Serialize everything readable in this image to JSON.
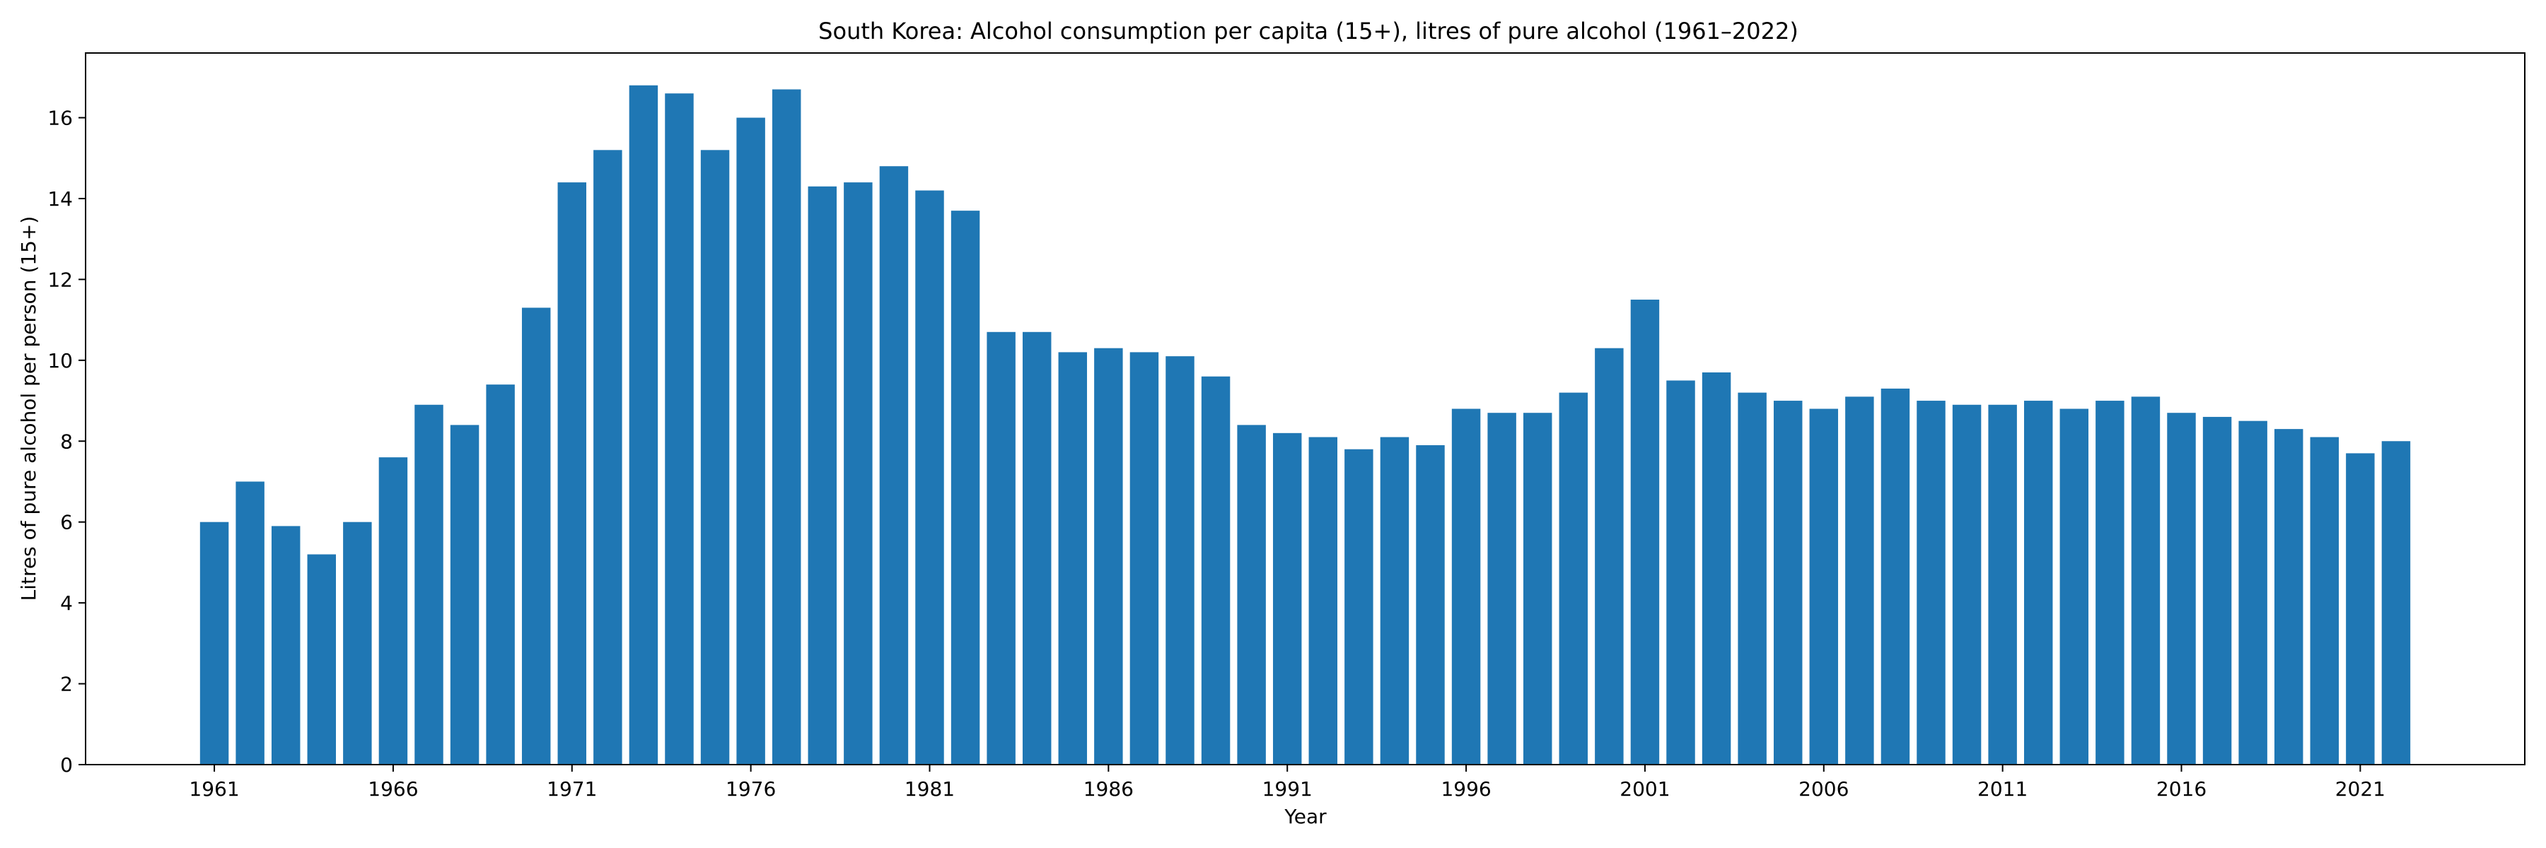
{
  "chart_data": {
    "type": "bar",
    "title": "South Korea: Alcohol consumption per capita (15+), litres of pure alcohol (1961–2022)",
    "xlabel": "Year",
    "ylabel": "Litres of pure alcohol per person (15+)",
    "ylim": [
      0,
      17.6
    ],
    "xlim": [
      1957.4,
      2025.6
    ],
    "yticks": [
      0,
      2,
      4,
      6,
      8,
      10,
      12,
      14,
      16
    ],
    "xticks": [
      1961,
      1966,
      1971,
      1976,
      1981,
      1986,
      1991,
      1996,
      2001,
      2006,
      2011,
      2016,
      2021
    ],
    "grid": false,
    "bar_color": "#1f77b4",
    "categories": [
      1961,
      1962,
      1963,
      1964,
      1965,
      1966,
      1967,
      1968,
      1969,
      1970,
      1971,
      1972,
      1973,
      1974,
      1975,
      1976,
      1977,
      1978,
      1979,
      1980,
      1981,
      1982,
      1983,
      1984,
      1985,
      1986,
      1987,
      1988,
      1989,
      1990,
      1991,
      1992,
      1993,
      1994,
      1995,
      1996,
      1997,
      1998,
      1999,
      2000,
      2001,
      2002,
      2003,
      2004,
      2005,
      2006,
      2007,
      2008,
      2009,
      2010,
      2011,
      2012,
      2013,
      2014,
      2015,
      2016,
      2017,
      2018,
      2019,
      2020,
      2021,
      2022
    ],
    "values": [
      6.0,
      7.0,
      5.9,
      5.2,
      6.0,
      7.6,
      8.9,
      8.4,
      9.4,
      11.3,
      14.4,
      15.2,
      16.8,
      16.6,
      15.2,
      16.0,
      16.7,
      14.3,
      14.4,
      14.8,
      14.2,
      13.7,
      10.7,
      10.7,
      10.2,
      10.3,
      10.2,
      10.1,
      9.6,
      8.4,
      8.2,
      8.1,
      7.8,
      8.1,
      7.9,
      8.8,
      8.7,
      8.7,
      9.2,
      10.3,
      11.5,
      9.5,
      9.7,
      9.2,
      9.0,
      8.8,
      9.1,
      9.3,
      9.0,
      8.9,
      8.9,
      9.0,
      8.8,
      9.0,
      9.1,
      8.7,
      8.6,
      8.5,
      8.3,
      8.1,
      7.7,
      8.0
    ]
  }
}
